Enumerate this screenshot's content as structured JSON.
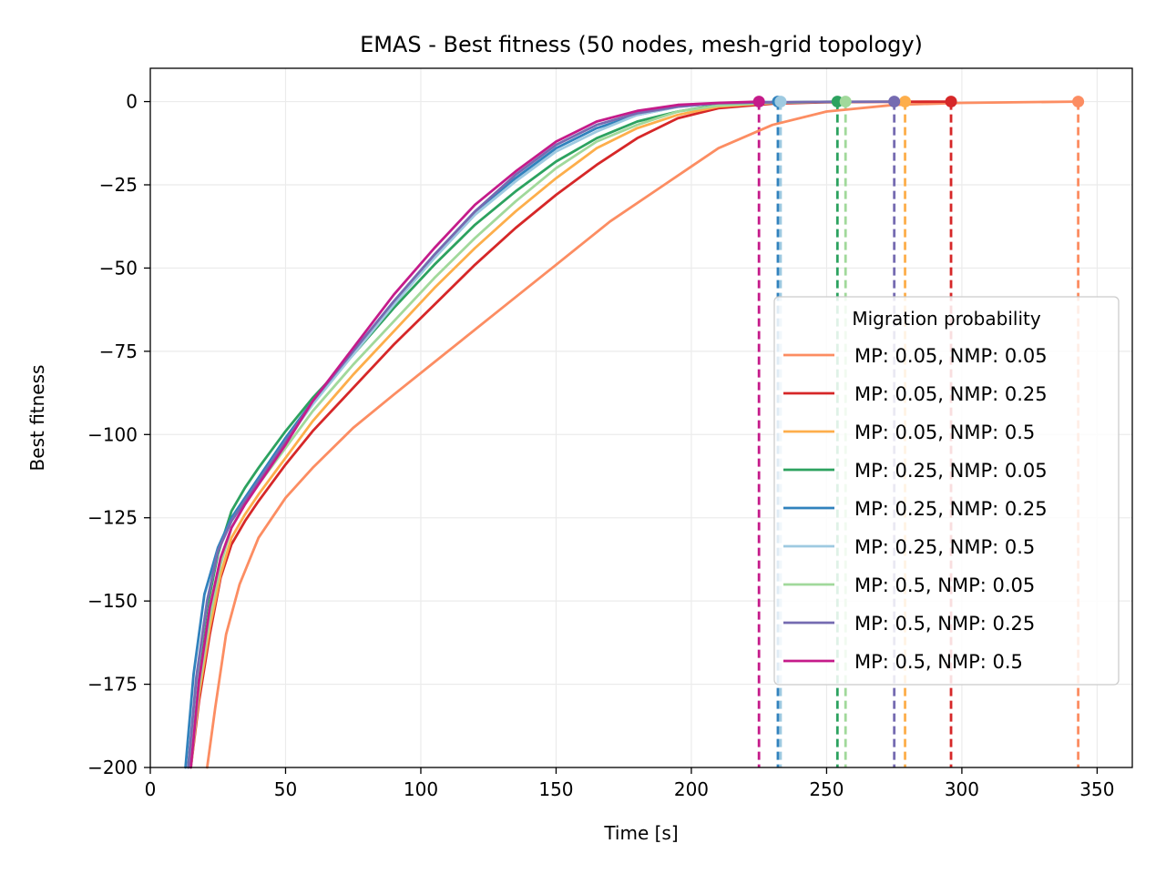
{
  "chart_data": {
    "type": "line",
    "title": "EMAS - Best fitness (50 nodes, mesh-grid topology)",
    "xlabel": "Time [s]",
    "ylabel": "Best fitness",
    "xlim": [
      0,
      363
    ],
    "ylim": [
      -200,
      10
    ],
    "xticks": [
      0,
      50,
      100,
      150,
      200,
      250,
      300,
      350
    ],
    "yticks": [
      0,
      -25,
      -50,
      -75,
      -100,
      -125,
      -150,
      -175,
      -200
    ],
    "grid": true,
    "legend": {
      "title": "Migration probability",
      "placement": "center-right"
    },
    "series": [
      {
        "name": "MP: 0.05, NMP: 0.05",
        "color": "#fc8d62",
        "end_time": 343,
        "end_value": 0,
        "x": [
          21,
          24,
          28,
          33,
          40,
          50,
          60,
          75,
          90,
          110,
          130,
          150,
          170,
          190,
          210,
          230,
          250,
          275,
          300,
          343
        ],
        "y": [
          -200,
          -182,
          -160,
          -145,
          -131,
          -119,
          -110,
          -98,
          -88,
          -75,
          -62,
          -49,
          -36,
          -25,
          -14,
          -7,
          -3,
          -1,
          -0.4,
          0
        ]
      },
      {
        "name": "MP: 0.05, NMP: 0.25",
        "color": "#d62728",
        "end_time": 296,
        "end_value": 0,
        "x": [
          15,
          18,
          22,
          26,
          30,
          35,
          40,
          50,
          60,
          75,
          90,
          105,
          120,
          135,
          150,
          165,
          180,
          195,
          210,
          230,
          250,
          270,
          296
        ],
        "y": [
          -200,
          -180,
          -160,
          -143,
          -133,
          -126,
          -120,
          -109,
          -99,
          -86,
          -73,
          -61,
          -49,
          -38,
          -28,
          -19,
          -11,
          -5,
          -2,
          -0.6,
          -0.2,
          -0.1,
          0
        ]
      },
      {
        "name": "MP: 0.05, NMP: 0.5",
        "color": "#fdae4b",
        "end_time": 279,
        "end_value": 0,
        "x": [
          15,
          18,
          22,
          26,
          30,
          35,
          40,
          50,
          60,
          75,
          90,
          105,
          120,
          135,
          150,
          165,
          180,
          195,
          210,
          230,
          250,
          279
        ],
        "y": [
          -200,
          -178,
          -158,
          -142,
          -131,
          -124,
          -118,
          -107,
          -96,
          -82,
          -69,
          -56,
          -44,
          -33,
          -23,
          -14,
          -8,
          -4,
          -1.5,
          -0.4,
          -0.1,
          0
        ]
      },
      {
        "name": "MP: 0.25, NMP: 0.05",
        "color": "#2ca25f",
        "end_time": 254,
        "end_value": 0,
        "x": [
          14,
          17,
          21,
          25,
          30,
          35,
          40,
          50,
          60,
          75,
          90,
          105,
          120,
          135,
          150,
          165,
          180,
          195,
          210,
          230,
          254
        ],
        "y": [
          -200,
          -175,
          -152,
          -136,
          -123,
          -116,
          -110,
          -99,
          -89,
          -76,
          -62,
          -49,
          -37,
          -27,
          -18,
          -11,
          -6,
          -3,
          -1,
          -0.3,
          0
        ]
      },
      {
        "name": "MP: 0.25, NMP: 0.25",
        "color": "#3182bd",
        "end_time": 232,
        "end_value": 0,
        "x": [
          13,
          16,
          20,
          25,
          30,
          35,
          40,
          50,
          60,
          75,
          90,
          105,
          120,
          135,
          150,
          165,
          180,
          195,
          210,
          232
        ],
        "y": [
          -200,
          -172,
          -148,
          -134,
          -125,
          -119,
          -113,
          -101,
          -90,
          -75,
          -60,
          -46,
          -33,
          -23,
          -14,
          -8,
          -4,
          -1.5,
          -0.5,
          0
        ]
      },
      {
        "name": "MP: 0.25, NMP: 0.5",
        "color": "#9ecae1",
        "end_time": 233,
        "end_value": 0,
        "x": [
          14,
          17,
          21,
          25,
          30,
          35,
          40,
          50,
          60,
          75,
          90,
          105,
          120,
          135,
          150,
          165,
          180,
          195,
          210,
          233
        ],
        "y": [
          -200,
          -174,
          -150,
          -135,
          -126,
          -120,
          -114,
          -102,
          -91,
          -76,
          -61,
          -47,
          -34,
          -24,
          -15,
          -9,
          -4,
          -1.6,
          -0.5,
          0
        ]
      },
      {
        "name": "MP: 0.5, NMP: 0.05",
        "color": "#a1d99b",
        "end_time": 257,
        "end_value": 0,
        "x": [
          15,
          18,
          22,
          26,
          30,
          35,
          40,
          50,
          60,
          75,
          90,
          105,
          120,
          135,
          150,
          165,
          180,
          195,
          210,
          230,
          257
        ],
        "y": [
          -200,
          -176,
          -155,
          -139,
          -128,
          -121,
          -115,
          -104,
          -93,
          -79,
          -66,
          -53,
          -41,
          -30,
          -20,
          -12,
          -7,
          -3,
          -1.2,
          -0.3,
          0
        ]
      },
      {
        "name": "MP: 0.5, NMP: 0.25",
        "color": "#756bb1",
        "end_time": 275,
        "end_value": 0,
        "x": [
          14,
          17,
          21,
          25,
          30,
          35,
          40,
          50,
          60,
          75,
          90,
          105,
          120,
          135,
          150,
          165,
          180,
          195,
          210,
          230,
          250,
          275
        ],
        "y": [
          -200,
          -173,
          -150,
          -135,
          -126,
          -120,
          -114,
          -102,
          -90,
          -75,
          -60,
          -46,
          -33,
          -22,
          -13,
          -7,
          -3.5,
          -1.5,
          -0.5,
          -0.2,
          -0.1,
          0
        ]
      },
      {
        "name": "MP: 0.5, NMP: 0.5",
        "color": "#c51b8a",
        "end_time": 225,
        "end_value": 0,
        "x": [
          15,
          18,
          22,
          26,
          30,
          35,
          40,
          50,
          60,
          75,
          90,
          105,
          120,
          135,
          150,
          165,
          180,
          195,
          210,
          225
        ],
        "y": [
          -200,
          -174,
          -152,
          -137,
          -128,
          -121,
          -115,
          -103,
          -90,
          -74,
          -58,
          -44,
          -31,
          -21,
          -12,
          -6,
          -2.8,
          -1,
          -0.4,
          0
        ]
      }
    ]
  }
}
